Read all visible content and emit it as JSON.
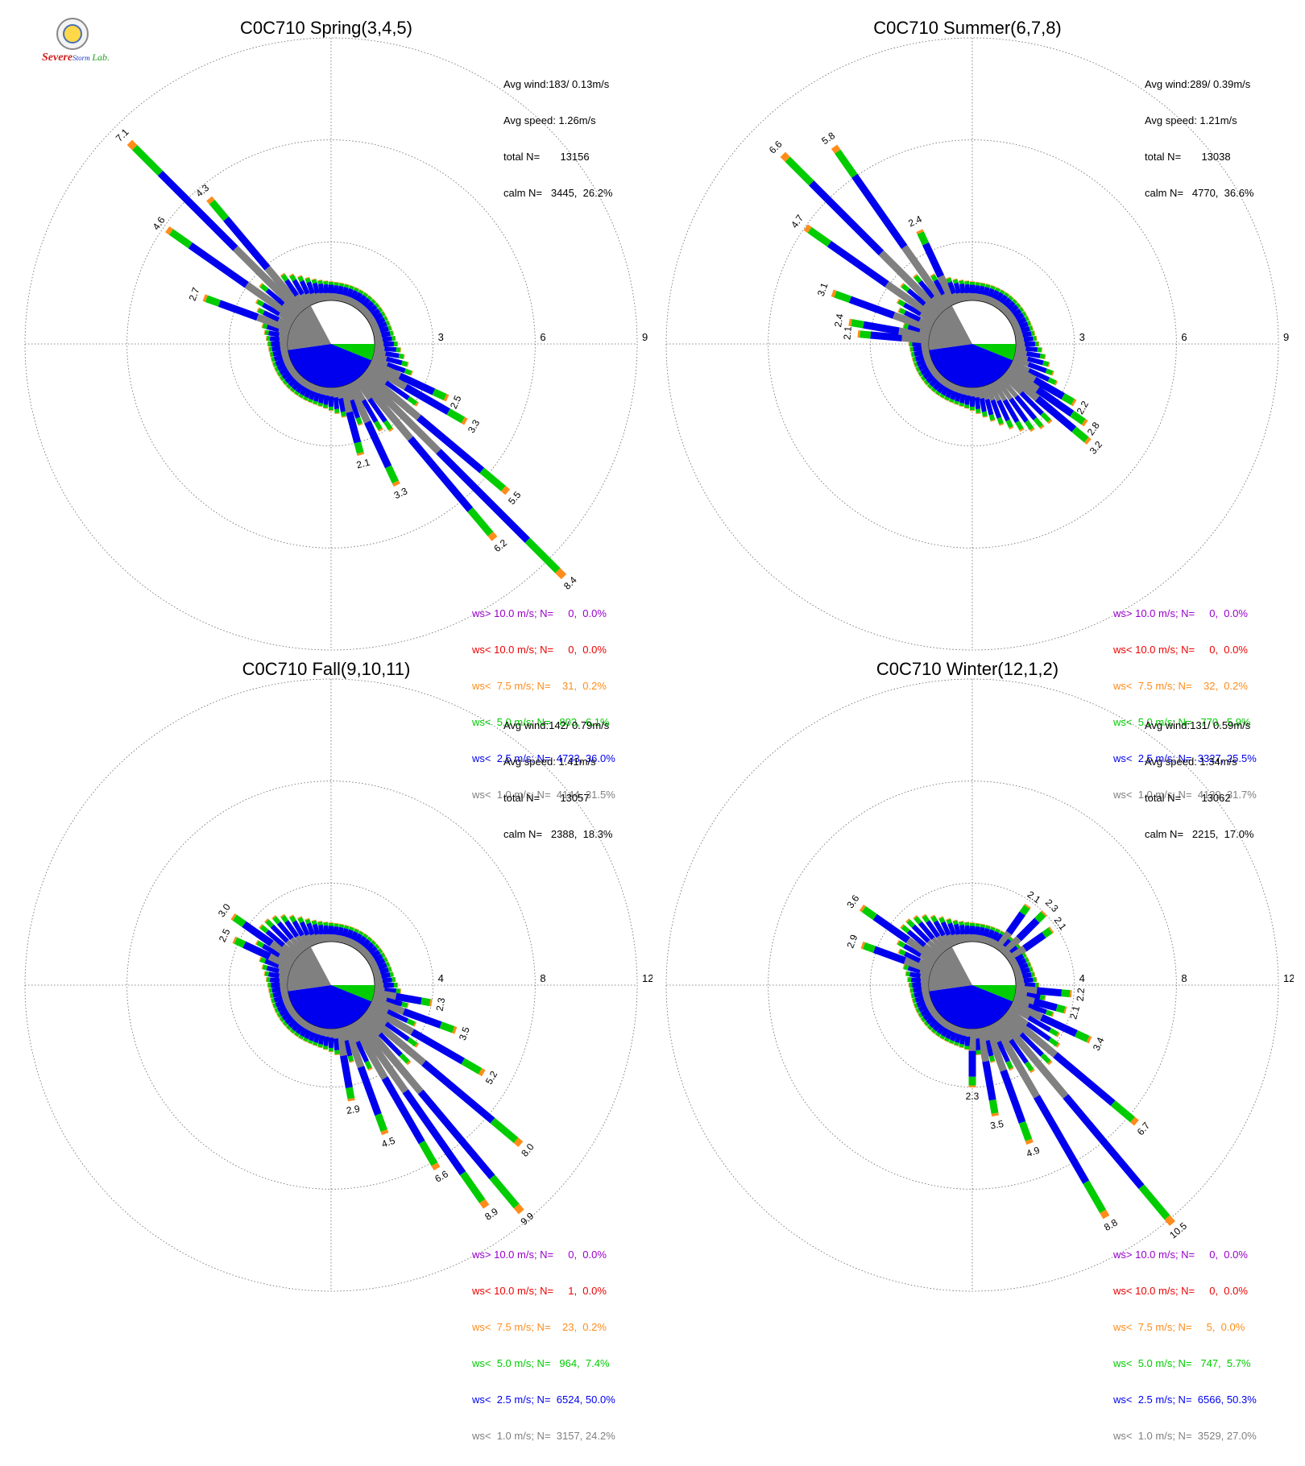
{
  "logo": {
    "text_1": "Severe",
    "text_2": "Storm",
    "text_3": "Lab."
  },
  "palette": {
    "calm": "#ffffff",
    "lt1": "#808080",
    "lt2_5": "#0000ee",
    "lt5": "#00cc00",
    "lt7_5": "#ff8c1a",
    "lt10": "#ee0000",
    "gt10": "#9900cc"
  },
  "chart_data": [
    {
      "type": "wind-rose",
      "title": "C0C710 Spring(3,4,5)",
      "stats": [
        "Avg wind:183/ 0.13m/s",
        "Avg speed: 1.26m/s",
        "total N=       13156",
        "calm N=   3445,  26.2%"
      ],
      "rlim": [
        0,
        9
      ],
      "ring_labels": [
        "3",
        "6",
        "9"
      ],
      "calm_direction_deg": 183,
      "legend": [
        {
          "label": "ws> 10.0 m/s; N=     0,  0.0%",
          "color": "#9900cc"
        },
        {
          "label": "ws< 10.0 m/s; N=     0,  0.0%",
          "color": "#ee0000"
        },
        {
          "label": "ws<  7.5 m/s; N=    31,  0.2%",
          "color": "#ff8c1a"
        },
        {
          "label": "ws<  5.0 m/s; N=   803,  6.1%",
          "color": "#00cc00"
        },
        {
          "label": "ws<  2.5 m/s; N=  4733, 36.0%",
          "color": "#0000ee"
        },
        {
          "label": "ws<  1.0 m/s; N=  4144, 31.5%",
          "color": "#808080"
        }
      ],
      "labeled_bars": [
        {
          "dir": 135,
          "value": "8.4"
        },
        {
          "dir": 140,
          "value": "6.2"
        },
        {
          "dir": 130,
          "value": "5.5"
        },
        {
          "dir": 155,
          "value": "3.3"
        },
        {
          "dir": 120,
          "value": "3.3"
        },
        {
          "dir": 115,
          "value": "2.5"
        },
        {
          "dir": 165,
          "value": "2.1"
        },
        {
          "dir": 315,
          "value": "7.1"
        },
        {
          "dir": 320,
          "value": "4.3"
        },
        {
          "dir": 305,
          "value": "4.6"
        },
        {
          "dir": 290,
          "value": "2.7"
        }
      ]
    },
    {
      "type": "wind-rose",
      "title": "C0C710 Summer(6,7,8)",
      "stats": [
        "Avg wind:289/ 0.39m/s",
        "Avg speed: 1.21m/s",
        "total N=       13038",
        "calm N=   4770,  36.6%"
      ],
      "rlim": [
        0,
        9
      ],
      "ring_labels": [
        "3",
        "6",
        "9"
      ],
      "calm_direction_deg": 289,
      "legend": [
        {
          "label": "ws> 10.0 m/s; N=     0,  0.0%",
          "color": "#9900cc"
        },
        {
          "label": "ws< 10.0 m/s; N=     0,  0.0%",
          "color": "#ee0000"
        },
        {
          "label": "ws<  7.5 m/s; N=    32,  0.2%",
          "color": "#ff8c1a"
        },
        {
          "label": "ws<  5.0 m/s; N=   770,  5.9%",
          "color": "#00cc00"
        },
        {
          "label": "ws<  2.5 m/s; N=  3327, 25.5%",
          "color": "#0000ee"
        },
        {
          "label": "ws<  1.0 m/s; N=  4139, 31.7%",
          "color": "#808080"
        }
      ],
      "labeled_bars": [
        {
          "dir": 315,
          "value": "6.6"
        },
        {
          "dir": 325,
          "value": "5.8"
        },
        {
          "dir": 305,
          "value": "4.7"
        },
        {
          "dir": 335,
          "value": "2.4"
        },
        {
          "dir": 290,
          "value": "3.1"
        },
        {
          "dir": 280,
          "value": "2.4"
        },
        {
          "dir": 275,
          "value": "2.1"
        },
        {
          "dir": 120,
          "value": "2.2"
        },
        {
          "dir": 125,
          "value": "2.8"
        },
        {
          "dir": 130,
          "value": "3.2"
        }
      ]
    },
    {
      "type": "wind-rose",
      "title": "C0C710 Fall(9,10,11)",
      "stats": [
        "Avg wind:142/ 0.79m/s",
        "Avg speed: 1.41m/s",
        "total N=       13057",
        "calm N=   2388,  18.3%"
      ],
      "rlim": [
        0,
        12
      ],
      "ring_labels": [
        "4",
        "8",
        "12"
      ],
      "calm_direction_deg": 142,
      "legend": [
        {
          "label": "ws> 10.0 m/s; N=     0,  0.0%",
          "color": "#9900cc"
        },
        {
          "label": "ws< 10.0 m/s; N=     1,  0.0%",
          "color": "#ee0000"
        },
        {
          "label": "ws<  7.5 m/s; N=    23,  0.2%",
          "color": "#ff8c1a"
        },
        {
          "label": "ws<  5.0 m/s; N=   964,  7.4%",
          "color": "#00cc00"
        },
        {
          "label": "ws<  2.5 m/s; N=  6524, 50.0%",
          "color": "#0000ee"
        },
        {
          "label": "ws<  1.0 m/s; N=  3157, 24.2%",
          "color": "#808080"
        }
      ],
      "labeled_bars": [
        {
          "dir": 140,
          "value": "9.9"
        },
        {
          "dir": 145,
          "value": "8.9"
        },
        {
          "dir": 130,
          "value": "8.0"
        },
        {
          "dir": 150,
          "value": "6.6"
        },
        {
          "dir": 120,
          "value": "5.2"
        },
        {
          "dir": 160,
          "value": "4.5"
        },
        {
          "dir": 110,
          "value": "3.5"
        },
        {
          "dir": 170,
          "value": "2.9"
        },
        {
          "dir": 100,
          "value": "2.3"
        },
        {
          "dir": 305,
          "value": "3.0"
        },
        {
          "dir": 295,
          "value": "2.5"
        }
      ]
    },
    {
      "type": "wind-rose",
      "title": "C0C710 Winter(12,1,2)",
      "stats": [
        "Avg wind:131/ 0.59m/s",
        "Avg speed: 1.34m/s",
        "total N=       13062",
        "calm N=   2215,  17.0%"
      ],
      "rlim": [
        0,
        12
      ],
      "ring_labels": [
        "4",
        "8",
        "12"
      ],
      "calm_direction_deg": 131,
      "legend": [
        {
          "label": "ws> 10.0 m/s; N=     0,  0.0%",
          "color": "#9900cc"
        },
        {
          "label": "ws< 10.0 m/s; N=     0,  0.0%",
          "color": "#ee0000"
        },
        {
          "label": "ws<  7.5 m/s; N=     5,  0.0%",
          "color": "#ff8c1a"
        },
        {
          "label": "ws<  5.0 m/s; N=   747,  5.7%",
          "color": "#00cc00"
        },
        {
          "label": "ws<  2.5 m/s; N=  6566, 50.3%",
          "color": "#0000ee"
        },
        {
          "label": "ws<  1.0 m/s; N=  3529, 27.0%",
          "color": "#808080"
        }
      ],
      "labeled_bars": [
        {
          "dir": 140,
          "value": "10.5"
        },
        {
          "dir": 150,
          "value": "8.8"
        },
        {
          "dir": 130,
          "value": "6.7"
        },
        {
          "dir": 160,
          "value": "4.9"
        },
        {
          "dir": 170,
          "value": "3.5"
        },
        {
          "dir": 115,
          "value": "3.4"
        },
        {
          "dir": 180,
          "value": "2.3"
        },
        {
          "dir": 105,
          "value": "2.1"
        },
        {
          "dir": 95,
          "value": "2.2"
        },
        {
          "dir": 35,
          "value": "2.1"
        },
        {
          "dir": 45,
          "value": "2.3"
        },
        {
          "dir": 55,
          "value": "2.1"
        },
        {
          "dir": 305,
          "value": "3.6"
        },
        {
          "dir": 290,
          "value": "2.9"
        }
      ]
    }
  ]
}
